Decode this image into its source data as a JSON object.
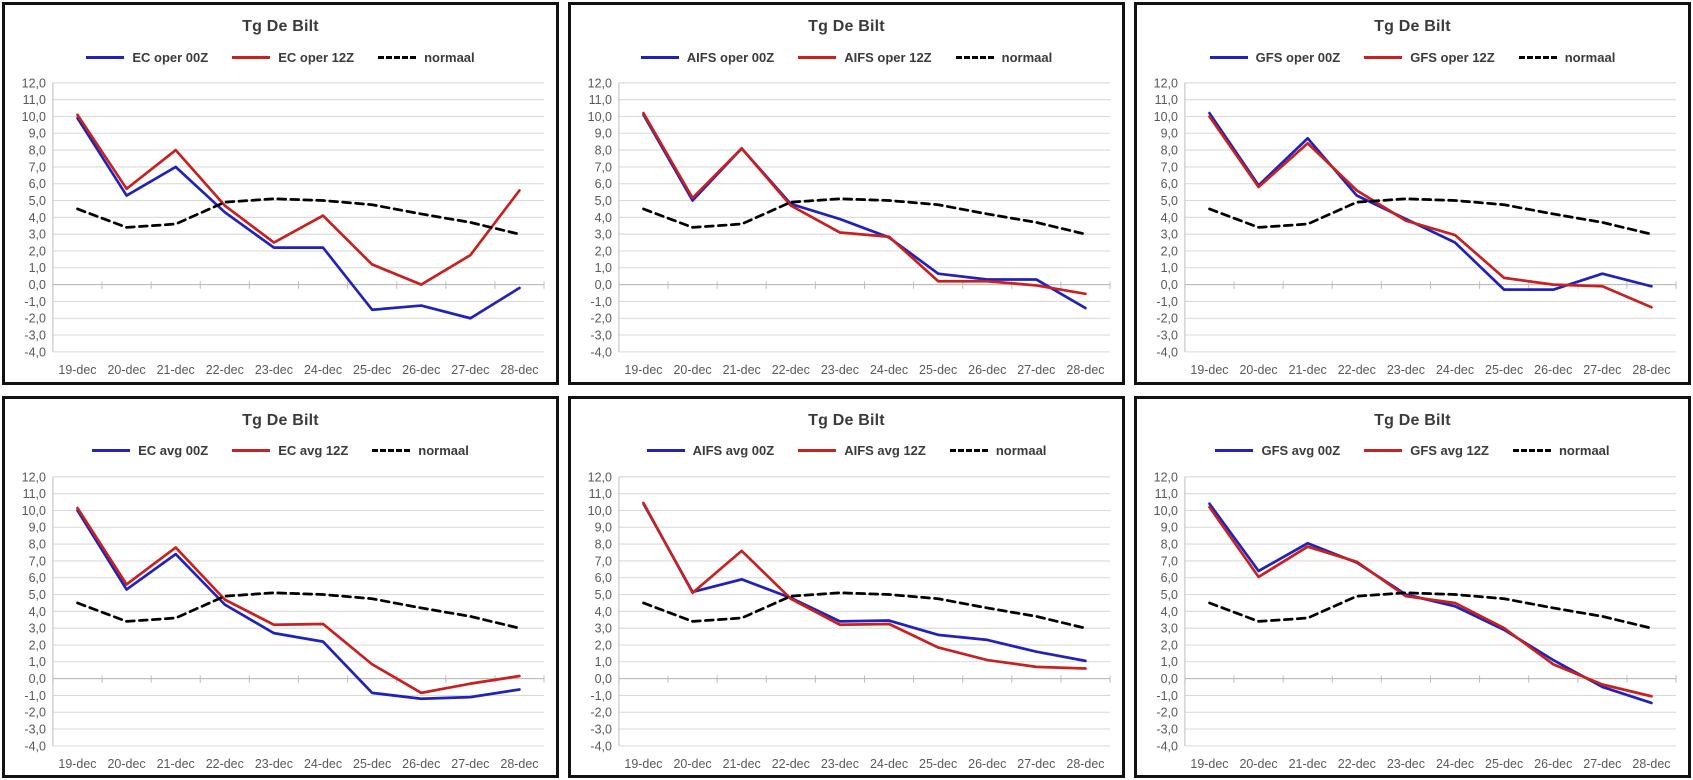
{
  "y_axis": {
    "labels": [
      "12,0",
      "11,0",
      "10,0",
      "9,0",
      "8,0",
      "7,0",
      "6,0",
      "5,0",
      "4,0",
      "3,0",
      "2,0",
      "1,0",
      "0,0",
      "-1,0",
      "-2,0",
      "-3,0",
      "-4,0"
    ],
    "values": [
      12,
      11,
      10,
      9,
      8,
      7,
      6,
      5,
      4,
      3,
      2,
      1,
      0,
      -1,
      -2,
      -3,
      -4
    ]
  },
  "categories": [
    "19-dec",
    "20-dec",
    "21-dec",
    "22-dec",
    "23-dec",
    "24-dec",
    "25-dec",
    "26-dec",
    "27-dec",
    "28-dec"
  ],
  "colors": {
    "model_00z": "#2222bb",
    "model_12z": "#c62222",
    "normaal": "#000000"
  },
  "charts": [
    {
      "title": "Tg De Bilt",
      "chart_data": {
        "type": "line",
        "x": [
          "19-dec",
          "20-dec",
          "21-dec",
          "22-dec",
          "23-dec",
          "24-dec",
          "25-dec",
          "26-dec",
          "27-dec",
          "28-dec"
        ],
        "ylim": [
          -4,
          12
        ],
        "ytick_step": 1,
        "grid": true,
        "legend_position": "top",
        "series": [
          {
            "name": "EC oper 00Z",
            "color": "#2222bb",
            "dash": false,
            "values": [
              9.9,
              5.3,
              7.0,
              4.3,
              2.2,
              2.2,
              -1.5,
              -1.25,
              -2.0,
              -0.2
            ]
          },
          {
            "name": "EC oper 12Z",
            "color": "#c62222",
            "dash": false,
            "values": [
              10.1,
              5.7,
              8.0,
              4.7,
              2.5,
              4.1,
              1.2,
              0.0,
              1.75,
              5.6
            ]
          },
          {
            "name": "normaal",
            "color": "#000000",
            "dash": true,
            "values": [
              4.5,
              3.4,
              3.6,
              4.9,
              5.1,
              5.0,
              4.75,
              4.2,
              3.7,
              3.0
            ]
          }
        ]
      }
    },
    {
      "title": "Tg De Bilt",
      "chart_data": {
        "type": "line",
        "x": [
          "19-dec",
          "20-dec",
          "21-dec",
          "22-dec",
          "23-dec",
          "24-dec",
          "25-dec",
          "26-dec",
          "27-dec",
          "28-dec"
        ],
        "ylim": [
          -4,
          12
        ],
        "ytick_step": 1,
        "grid": true,
        "legend_position": "top",
        "series": [
          {
            "name": "AIFS oper 00Z",
            "color": "#2222bb",
            "dash": false,
            "values": [
              10.1,
              5.0,
              8.1,
              4.8,
              3.9,
              2.8,
              0.65,
              0.3,
              0.3,
              -1.4
            ]
          },
          {
            "name": "AIFS oper 12Z",
            "color": "#c62222",
            "dash": false,
            "values": [
              10.2,
              5.15,
              8.1,
              4.7,
              3.1,
              2.85,
              0.2,
              0.2,
              -0.05,
              -0.55
            ]
          },
          {
            "name": "normaal",
            "color": "#000000",
            "dash": true,
            "values": [
              4.5,
              3.4,
              3.6,
              4.9,
              5.1,
              5.0,
              4.75,
              4.2,
              3.7,
              3.0
            ]
          }
        ]
      }
    },
    {
      "title": "Tg De Bilt",
      "chart_data": {
        "type": "line",
        "x": [
          "19-dec",
          "20-dec",
          "21-dec",
          "22-dec",
          "23-dec",
          "24-dec",
          "25-dec",
          "26-dec",
          "27-dec",
          "28-dec"
        ],
        "ylim": [
          -4,
          12
        ],
        "ytick_step": 1,
        "grid": true,
        "legend_position": "top",
        "series": [
          {
            "name": "GFS oper 00Z",
            "color": "#2222bb",
            "dash": false,
            "values": [
              10.2,
              5.9,
              8.7,
              5.3,
              3.9,
              2.5,
              -0.3,
              -0.3,
              0.65,
              -0.1
            ]
          },
          {
            "name": "GFS oper 12Z",
            "color": "#c62222",
            "dash": false,
            "values": [
              10.0,
              5.8,
              8.4,
              5.6,
              3.8,
              2.95,
              0.4,
              0.0,
              -0.1,
              -1.35
            ]
          },
          {
            "name": "normaal",
            "color": "#000000",
            "dash": true,
            "values": [
              4.5,
              3.4,
              3.6,
              4.9,
              5.1,
              5.0,
              4.75,
              4.2,
              3.7,
              3.0
            ]
          }
        ]
      }
    },
    {
      "title": "Tg De Bilt",
      "chart_data": {
        "type": "line",
        "x": [
          "19-dec",
          "20-dec",
          "21-dec",
          "22-dec",
          "23-dec",
          "24-dec",
          "25-dec",
          "26-dec",
          "27-dec",
          "28-dec"
        ],
        "ylim": [
          -4,
          12
        ],
        "ytick_step": 1,
        "grid": true,
        "legend_position": "top",
        "series": [
          {
            "name": "EC avg 00Z",
            "color": "#2222bb",
            "dash": false,
            "values": [
              10.0,
              5.3,
              7.4,
              4.4,
              2.7,
              2.2,
              -0.85,
              -1.2,
              -1.1,
              -0.65
            ]
          },
          {
            "name": "EC avg 12Z",
            "color": "#c62222",
            "dash": false,
            "values": [
              10.15,
              5.6,
              7.8,
              4.7,
              3.2,
              3.25,
              0.85,
              -0.85,
              -0.3,
              0.15
            ]
          },
          {
            "name": "normaal",
            "color": "#000000",
            "dash": true,
            "values": [
              4.5,
              3.4,
              3.6,
              4.9,
              5.1,
              5.0,
              4.75,
              4.2,
              3.7,
              3.0
            ]
          }
        ]
      }
    },
    {
      "title": "Tg De Bilt",
      "chart_data": {
        "type": "line",
        "x": [
          "19-dec",
          "20-dec",
          "21-dec",
          "22-dec",
          "23-dec",
          "24-dec",
          "25-dec",
          "26-dec",
          "27-dec",
          "28-dec"
        ],
        "ylim": [
          -4,
          12
        ],
        "ytick_step": 1,
        "grid": true,
        "legend_position": "top",
        "series": [
          {
            "name": "AIFS avg 00Z",
            "color": "#2222bb",
            "dash": false,
            "values": [
              10.4,
              5.15,
              5.9,
              4.8,
              3.4,
              3.45,
              2.6,
              2.3,
              1.6,
              1.05
            ]
          },
          {
            "name": "AIFS avg 12Z",
            "color": "#c62222",
            "dash": false,
            "values": [
              10.45,
              5.1,
              7.6,
              4.75,
              3.2,
              3.25,
              1.85,
              1.1,
              0.7,
              0.6
            ]
          },
          {
            "name": "normaal",
            "color": "#000000",
            "dash": true,
            "values": [
              4.5,
              3.4,
              3.6,
              4.9,
              5.1,
              5.0,
              4.75,
              4.2,
              3.7,
              3.0
            ]
          }
        ]
      }
    },
    {
      "title": "Tg De Bilt",
      "chart_data": {
        "type": "line",
        "x": [
          "19-dec",
          "20-dec",
          "21-dec",
          "22-dec",
          "23-dec",
          "24-dec",
          "25-dec",
          "26-dec",
          "27-dec",
          "28-dec"
        ],
        "ylim": [
          -4,
          12
        ],
        "ytick_step": 1,
        "grid": true,
        "legend_position": "top",
        "series": [
          {
            "name": "GFS avg 00Z",
            "color": "#2222bb",
            "dash": false,
            "values": [
              10.4,
              6.4,
              8.05,
              6.9,
              5.0,
              4.3,
              2.9,
              1.1,
              -0.5,
              -1.45
            ]
          },
          {
            "name": "GFS avg 12Z",
            "color": "#c62222",
            "dash": false,
            "values": [
              10.2,
              6.05,
              7.85,
              6.95,
              4.9,
              4.5,
              3.0,
              0.85,
              -0.35,
              -1.05
            ]
          },
          {
            "name": "normaal",
            "color": "#000000",
            "dash": true,
            "values": [
              4.5,
              3.4,
              3.6,
              4.9,
              5.1,
              5.0,
              4.75,
              4.2,
              3.7,
              3.0
            ]
          }
        ]
      }
    }
  ]
}
